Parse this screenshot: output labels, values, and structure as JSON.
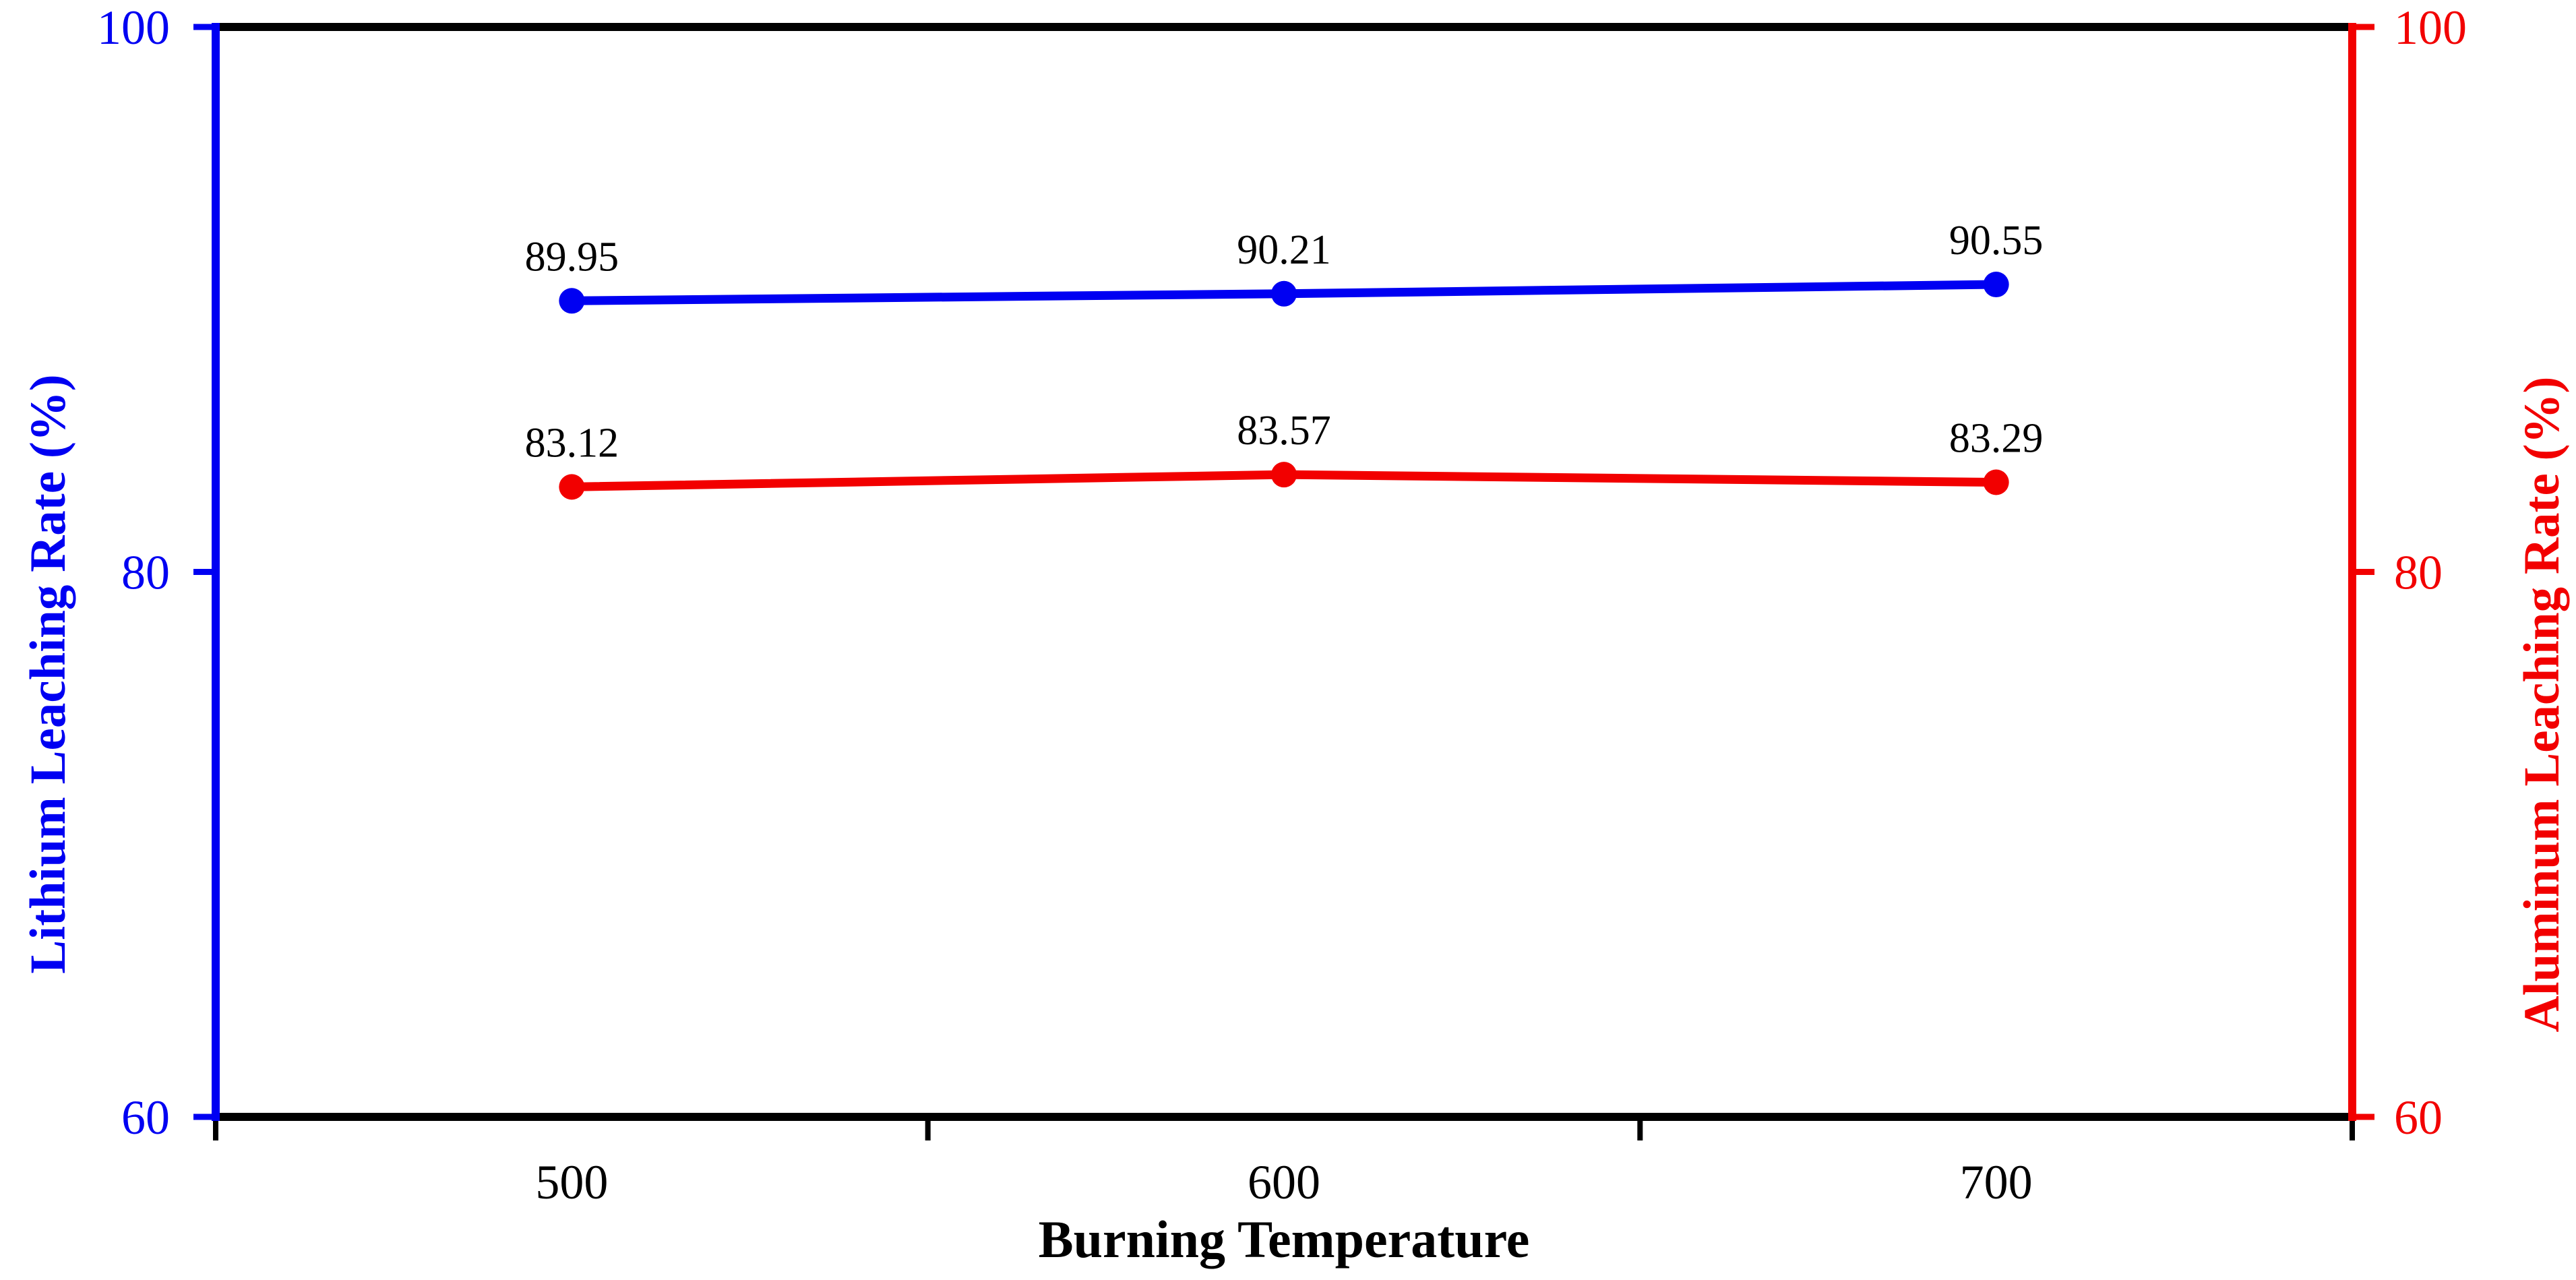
{
  "figure": {
    "background": "#ffffff",
    "frame_color": "#000000"
  },
  "chart_data": {
    "type": "line",
    "title": "",
    "xlabel": "Burning Temperature",
    "categories": [
      "500",
      "600",
      "700"
    ],
    "x_values": [
      500,
      600,
      700
    ],
    "ylim": [
      60,
      100
    ],
    "yticks": [
      100,
      80,
      60
    ],
    "ytick_labels": [
      "100",
      "80",
      "60"
    ],
    "grid": false,
    "legend_position": "none",
    "axes": {
      "left": {
        "label": "Lithium Leaching Rate (%)",
        "color": "#0000f2",
        "tick_labels": [
          "100",
          "80",
          "60"
        ]
      },
      "right": {
        "label": "Aluminum Leaching Rate (%)",
        "color": "#f20000",
        "tick_labels": [
          "100",
          "80",
          "60"
        ]
      }
    },
    "series": [
      {
        "name": "Lithium Leaching Rate",
        "axis": "left",
        "color": "#0000f2",
        "marker": "circle",
        "values": [
          89.95,
          90.21,
          90.55
        ],
        "point_labels": [
          "89.95",
          "90.21",
          "90.55"
        ]
      },
      {
        "name": "Aluminum Leaching Rate",
        "axis": "right",
        "color": "#f20000",
        "marker": "circle",
        "values": [
          83.12,
          83.57,
          83.29
        ],
        "point_labels": [
          "83.12",
          "83.57",
          "83.29"
        ]
      }
    ],
    "point_label_color": "#000000",
    "x_tick_label_color": "#000000"
  }
}
